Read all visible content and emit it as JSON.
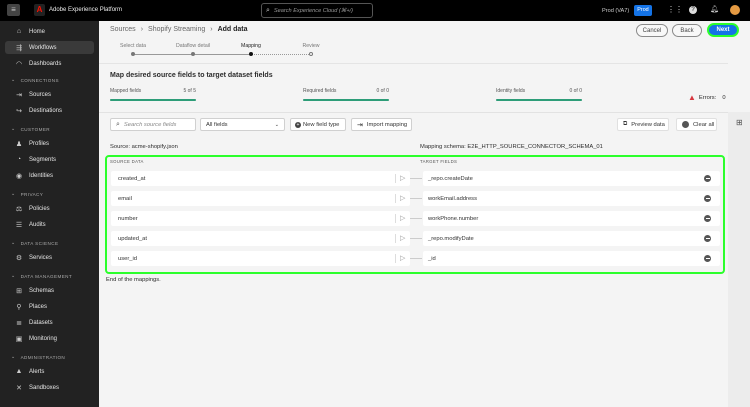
{
  "header": {
    "app_title": "Adobe Experience Platform",
    "search_placeholder": "Search Experience Cloud (⌘+/)",
    "org": "Prod (VA7)",
    "sandbox_badge": "Prod"
  },
  "sidebar": {
    "items": [
      {
        "label": "Home",
        "icon": "home-icon"
      },
      {
        "label": "Workflows",
        "icon": "workflows-icon",
        "active": true
      },
      {
        "label": "Dashboards",
        "icon": "dashboards-icon"
      }
    ],
    "sections": [
      {
        "title": "CONNECTIONS",
        "items": [
          {
            "label": "Sources"
          },
          {
            "label": "Destinations"
          }
        ]
      },
      {
        "title": "CUSTOMER",
        "items": [
          {
            "label": "Profiles"
          },
          {
            "label": "Segments"
          },
          {
            "label": "Identities"
          }
        ]
      },
      {
        "title": "PRIVACY",
        "items": [
          {
            "label": "Policies"
          },
          {
            "label": "Audits"
          }
        ]
      },
      {
        "title": "DATA SCIENCE",
        "items": [
          {
            "label": "Services"
          }
        ]
      },
      {
        "title": "DATA MANAGEMENT",
        "items": [
          {
            "label": "Schemas"
          },
          {
            "label": "Places"
          },
          {
            "label": "Datasets"
          },
          {
            "label": "Monitoring"
          }
        ]
      },
      {
        "title": "ADMINISTRATION",
        "items": [
          {
            "label": "Alerts"
          },
          {
            "label": "Sandboxes"
          }
        ]
      }
    ]
  },
  "breadcrumb": [
    "Sources",
    "Shopify Streaming",
    "Add data"
  ],
  "steps": [
    {
      "label": "Select data",
      "state": "done"
    },
    {
      "label": "Dataflow detail",
      "state": "done"
    },
    {
      "label": "Mapping",
      "state": "current"
    },
    {
      "label": "Review",
      "state": "todo"
    }
  ],
  "actions": {
    "cancel": "Cancel",
    "back": "Back",
    "next": "Next"
  },
  "mapping": {
    "title": "Map desired source fields to target dataset fields",
    "progress": [
      {
        "label": "Mapped fields",
        "value": "5 of 5",
        "fraction": 1
      },
      {
        "label": "Required fields",
        "value": "0 of 0",
        "fraction": 1
      },
      {
        "label": "Identity fields",
        "value": "0 of 0",
        "fraction": 1
      }
    ],
    "errors_label": "Errors:",
    "errors_count": "0",
    "search_placeholder": "Search source fields",
    "filter": "All fields",
    "new_field_type": "New field type",
    "import_mapping": "Import mapping",
    "preview_data": "Preview data",
    "clear_all": "Clear all",
    "source": "Source: acme-shopify.json",
    "schema": "Mapping schema: E2E_HTTP_SOURCE_CONNECTOR_SCHEMA_01",
    "source_header": "SOURCE DATA",
    "target_header": "TARGET FIELDS",
    "rows": [
      {
        "source": "created_at",
        "target": "_repo.createDate"
      },
      {
        "source": "email",
        "target": "workEmail.address"
      },
      {
        "source": "number",
        "target": "workPhone.number"
      },
      {
        "source": "updated_at",
        "target": "_repo.modifyDate"
      },
      {
        "source": "user_id",
        "target": "_id"
      }
    ],
    "end_text": "End of the mappings."
  },
  "colors": {
    "accent": "#1473e6",
    "highlight": "#2bff2b",
    "progress": "#2d9d78",
    "error": "#d7373f"
  }
}
